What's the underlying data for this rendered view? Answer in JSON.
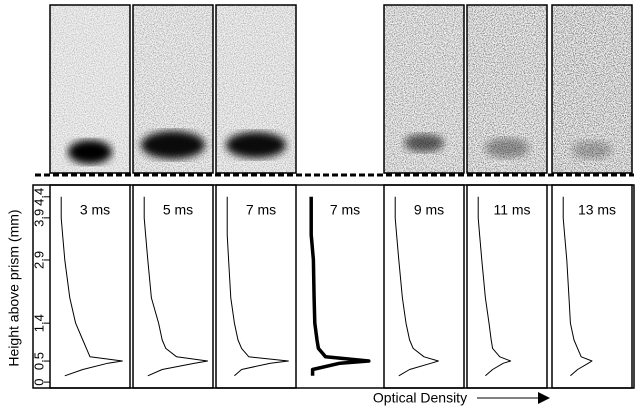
{
  "chart_data": {
    "type": "line",
    "y_label": "Height above prism (mm)",
    "x_label": "Optical Density",
    "ylim": [
      -0.14,
      4.68
    ],
    "yticks": [
      0,
      0.5,
      1.4,
      2.9,
      3.9,
      4.4
    ],
    "xlim": [
      0,
      1
    ],
    "heights": [
      0.15,
      0.3,
      0.45,
      0.5,
      0.6,
      0.8,
      1.0,
      1.4,
      2.0,
      2.9,
      3.5,
      3.9,
      4.4
    ],
    "series": [
      {
        "name": "3 ms",
        "color": "#000000",
        "stroke_width": 1,
        "values": [
          0.15,
          0.4,
          0.75,
          0.95,
          0.5,
          0.45,
          0.4,
          0.3,
          0.22,
          0.15,
          0.12,
          0.1,
          0.1
        ]
      },
      {
        "name": "5 ms",
        "color": "#000000",
        "stroke_width": 1,
        "values": [
          0.15,
          0.35,
          0.8,
          0.98,
          0.55,
          0.4,
          0.35,
          0.3,
          0.2,
          0.15,
          0.12,
          0.1,
          0.1
        ]
      },
      {
        "name": "7 ms",
        "color": "#000000",
        "stroke_width": 1,
        "values": [
          0.2,
          0.3,
          0.7,
          0.95,
          0.4,
          0.3,
          0.25,
          0.2,
          0.15,
          0.12,
          0.1,
          0.1,
          0.1
        ]
      },
      {
        "name": "7 ms",
        "color": "#000000",
        "stroke_width": 3.5,
        "values": [
          0.12,
          0.12,
          0.5,
          0.9,
          0.3,
          0.2,
          0.18,
          0.15,
          0.14,
          0.13,
          0.1,
          0.1,
          0.1
        ]
      },
      {
        "name": "9 ms",
        "color": "#000000",
        "stroke_width": 1,
        "values": [
          0.15,
          0.3,
          0.6,
          0.7,
          0.5,
          0.35,
          0.3,
          0.25,
          0.2,
          0.15,
          0.12,
          0.1,
          0.1
        ]
      },
      {
        "name": "11 ms",
        "color": "#000000",
        "stroke_width": 1,
        "values": [
          0.2,
          0.3,
          0.45,
          0.55,
          0.4,
          0.3,
          0.28,
          0.25,
          0.2,
          0.15,
          0.12,
          0.1,
          0.1
        ]
      },
      {
        "name": "13 ms",
        "color": "#000000",
        "stroke_width": 1,
        "values": [
          0.2,
          0.3,
          0.45,
          0.5,
          0.35,
          0.3,
          0.25,
          0.2,
          0.18,
          0.15,
          0.12,
          0.1,
          0.1
        ]
      }
    ]
  }
}
